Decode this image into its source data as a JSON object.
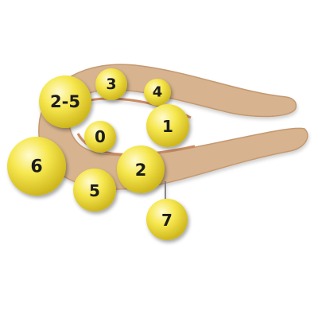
{
  "colors": {
    "tube": "#d7b48f",
    "tube_edge": "#c49870",
    "inner": "#c98a62",
    "ball_light": "#fffbd0",
    "ball_mid": "#f6e74e",
    "ball_dark": "#cdb51a"
  },
  "labels": {
    "b0": "0",
    "b1": "1",
    "b2": "2",
    "b3": "3",
    "b4": "4",
    "b5": "5",
    "b6": "6",
    "b7": "7",
    "b25": "2-5"
  }
}
